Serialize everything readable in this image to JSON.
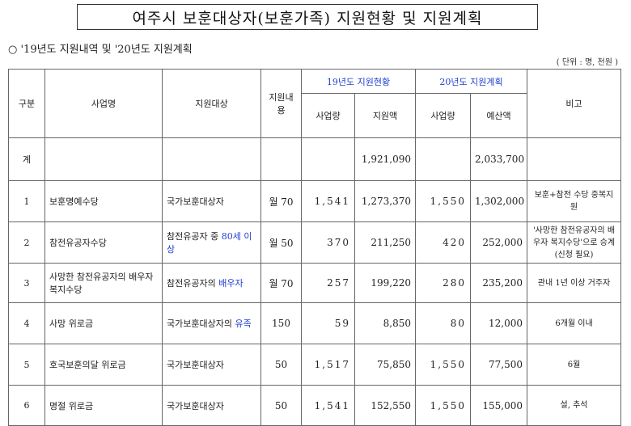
{
  "title": "여주시 보훈대상자(보훈가족) 지원현황 및 지원계획",
  "subtitle": "○ '19년도 지원내역 및 '20년도 지원계획",
  "unit": "( 단위 : 명, 천원 )",
  "colors": {
    "highlight": "#1f3fcf",
    "border": "#666666"
  },
  "table": {
    "headers": {
      "gubun": "구분",
      "project": "사업명",
      "target": "지원대상",
      "content": "지원내용",
      "y19_group": "19년도 지원현황",
      "y20_group": "20년도 지원계획",
      "note": "비고",
      "y19_qty": "사업량",
      "y19_amount": "지원액",
      "y20_qty": "사업량",
      "y20_amount": "예산액"
    },
    "rows": [
      {
        "no": "계",
        "name": "",
        "target": "",
        "target_hl": "",
        "content": "",
        "q19": "",
        "a19": "1,921,090",
        "q20": "",
        "a20": "2,033,700",
        "note": ""
      },
      {
        "no": "1",
        "name": "보훈명예수당",
        "target": "국가보훈대상자",
        "target_hl": "",
        "content": "월 70",
        "q19": "1,541",
        "a19": "1,273,370",
        "q20": "1,550",
        "a20": "1,302,000",
        "note": "보훈+참전 수당 중복지원"
      },
      {
        "no": "2",
        "name": "참전유공자수당",
        "target": "참전유공자 중 ",
        "target_hl": "80세 이상",
        "content": "월 50",
        "q19": "370",
        "a19": "211,250",
        "q20": "420",
        "a20": "252,000",
        "note": "'사망한 참전유공자의 배우자 복지수당'으로 승계 (신청 필요)"
      },
      {
        "no": "3",
        "name": "사망한 참전유공자의 배우자 복지수당",
        "target": "참전유공자의 ",
        "target_hl": "배우자",
        "content": "월 70",
        "q19": "257",
        "a19": "199,220",
        "q20": "280",
        "a20": "235,200",
        "note": "관내 1년 이상 거주자"
      },
      {
        "no": "4",
        "name": "사망 위로금",
        "target": "국가보훈대상자의 ",
        "target_hl": "유족",
        "content": "150",
        "q19": "59",
        "a19": "8,850",
        "q20": "80",
        "a20": "12,000",
        "note": "6개월 이내"
      },
      {
        "no": "5",
        "name": "호국보훈의달 위로금",
        "target": "국가보훈대상자",
        "target_hl": "",
        "content": "50",
        "q19": "1,517",
        "a19": "75,850",
        "q20": "1,550",
        "a20": "77,500",
        "note": "6월"
      },
      {
        "no": "6",
        "name": "명절 위로금",
        "target": "국가보훈대상자",
        "target_hl": "",
        "content": "50",
        "q19": "1,541",
        "a19": "152,550",
        "q20": "1,550",
        "a20": "155,000",
        "note": "설, 추석"
      }
    ]
  }
}
